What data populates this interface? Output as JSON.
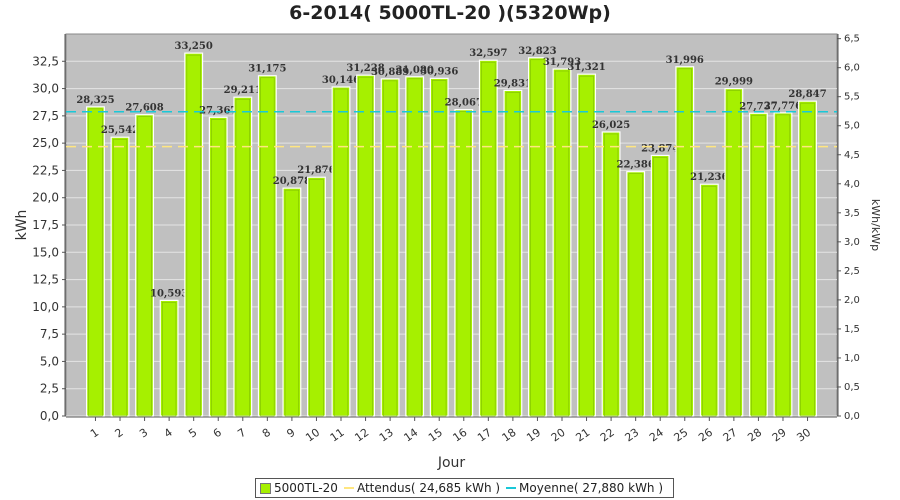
{
  "chart_data": {
    "type": "bar",
    "title": "6-2014( 5000TL-20 )(5320Wp)",
    "xlabel": "Jour",
    "ylabel": "kWh",
    "y2label": "kWh/kWp",
    "ylim": [
      0,
      35
    ],
    "y_ticks": [
      "0,0",
      "2,5",
      "5,0",
      "7,5",
      "10,0",
      "12,5",
      "15,0",
      "17,5",
      "20,0",
      "22,5",
      "25,0",
      "27,5",
      "30,0",
      "32,5"
    ],
    "y2lim": [
      0,
      6.58
    ],
    "y2_ticks": [
      "0,0",
      "0,5",
      "1,0",
      "1,5",
      "2,0",
      "2,5",
      "3,0",
      "3,5",
      "4,0",
      "4,5",
      "5,0",
      "5,5",
      "6,0",
      "6,5"
    ],
    "categories": [
      "1",
      "2",
      "3",
      "4",
      "5",
      "6",
      "7",
      "8",
      "9",
      "10",
      "11",
      "12",
      "13",
      "14",
      "15",
      "16",
      "17",
      "18",
      "19",
      "20",
      "21",
      "22",
      "23",
      "24",
      "25",
      "26",
      "27",
      "28",
      "29",
      "30"
    ],
    "series": [
      {
        "name": "5000TL-20",
        "color": "#a6f000",
        "values": [
          28.325,
          25.542,
          27.608,
          10.593,
          33.25,
          27.367,
          29.211,
          31.175,
          20.878,
          21.876,
          30.146,
          31.228,
          30.889,
          31.08,
          30.936,
          28.067,
          32.597,
          29.831,
          32.823,
          31.793,
          31.321,
          26.025,
          22.386,
          23.874,
          31.996,
          21.236,
          29.999,
          27.737,
          27.776,
          28.847
        ],
        "labels": [
          "28,325",
          "25,542",
          "27,608",
          "10,593",
          "33,250",
          "27,367",
          "29,211",
          "31,175",
          "20,878",
          "21,876",
          "30,146",
          "31,228",
          "30,889",
          "31,080",
          "30,936",
          "28,067",
          "32,597",
          "29,831",
          "32,823",
          "31,793",
          "31,321",
          "26,025",
          "22,386",
          "23,874",
          "31,996",
          "21,236",
          "29,999",
          "27,737",
          "27,776",
          "28,847"
        ]
      }
    ],
    "attendus": {
      "value": 24.685,
      "legend": "Attendus( 24,685 kWh )",
      "color": "#ffe680"
    },
    "moyenne": {
      "value": 27.88,
      "legend": "Moyenne( 27,880 kWh )",
      "color": "#19c8d8"
    },
    "grid": true,
    "legend_position": "bottom"
  }
}
